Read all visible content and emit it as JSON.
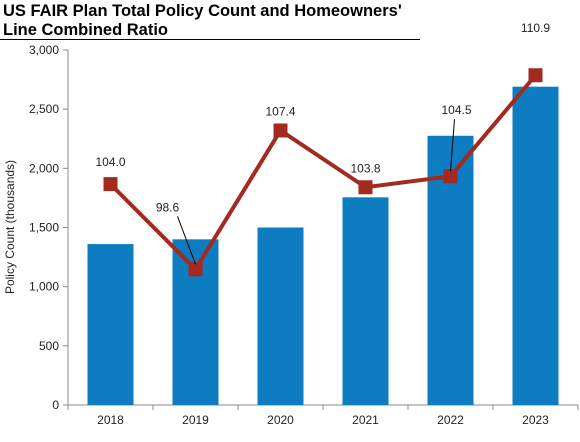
{
  "title": "US FAIR Plan Total Policy Count and Homeowners' Line Combined Ratio",
  "chart_data": {
    "type": "bar+line",
    "title": "US FAIR Plan Total Policy Count and Homeowners' Line Combined Ratio",
    "categories": [
      "2018",
      "2019",
      "2020",
      "2021",
      "2022",
      "2023"
    ],
    "ylabel": "Policy Count (thousands)",
    "ylim": [
      0,
      3000
    ],
    "yticks": [
      0,
      500,
      1000,
      1500,
      2000,
      2500,
      3000
    ],
    "ytick_labels": [
      "0",
      "500",
      "1,000",
      "1,500",
      "2,000",
      "2,500",
      "3,000"
    ],
    "grid": false,
    "legend": "none",
    "series": [
      {
        "type": "bar",
        "values": [
          1360,
          1400,
          1500,
          1755,
          2275,
          2690
        ],
        "color": "#0E7CC1"
      },
      {
        "type": "line",
        "values": [
          104.0,
          98.6,
          107.4,
          103.8,
          104.5,
          110.9
        ],
        "labels": [
          "104.0",
          "98.6",
          "107.4",
          "103.8",
          "104.5",
          "110.9"
        ],
        "secondary_axis_hidden": true,
        "color": "#A4291F",
        "marker": "square"
      }
    ]
  }
}
